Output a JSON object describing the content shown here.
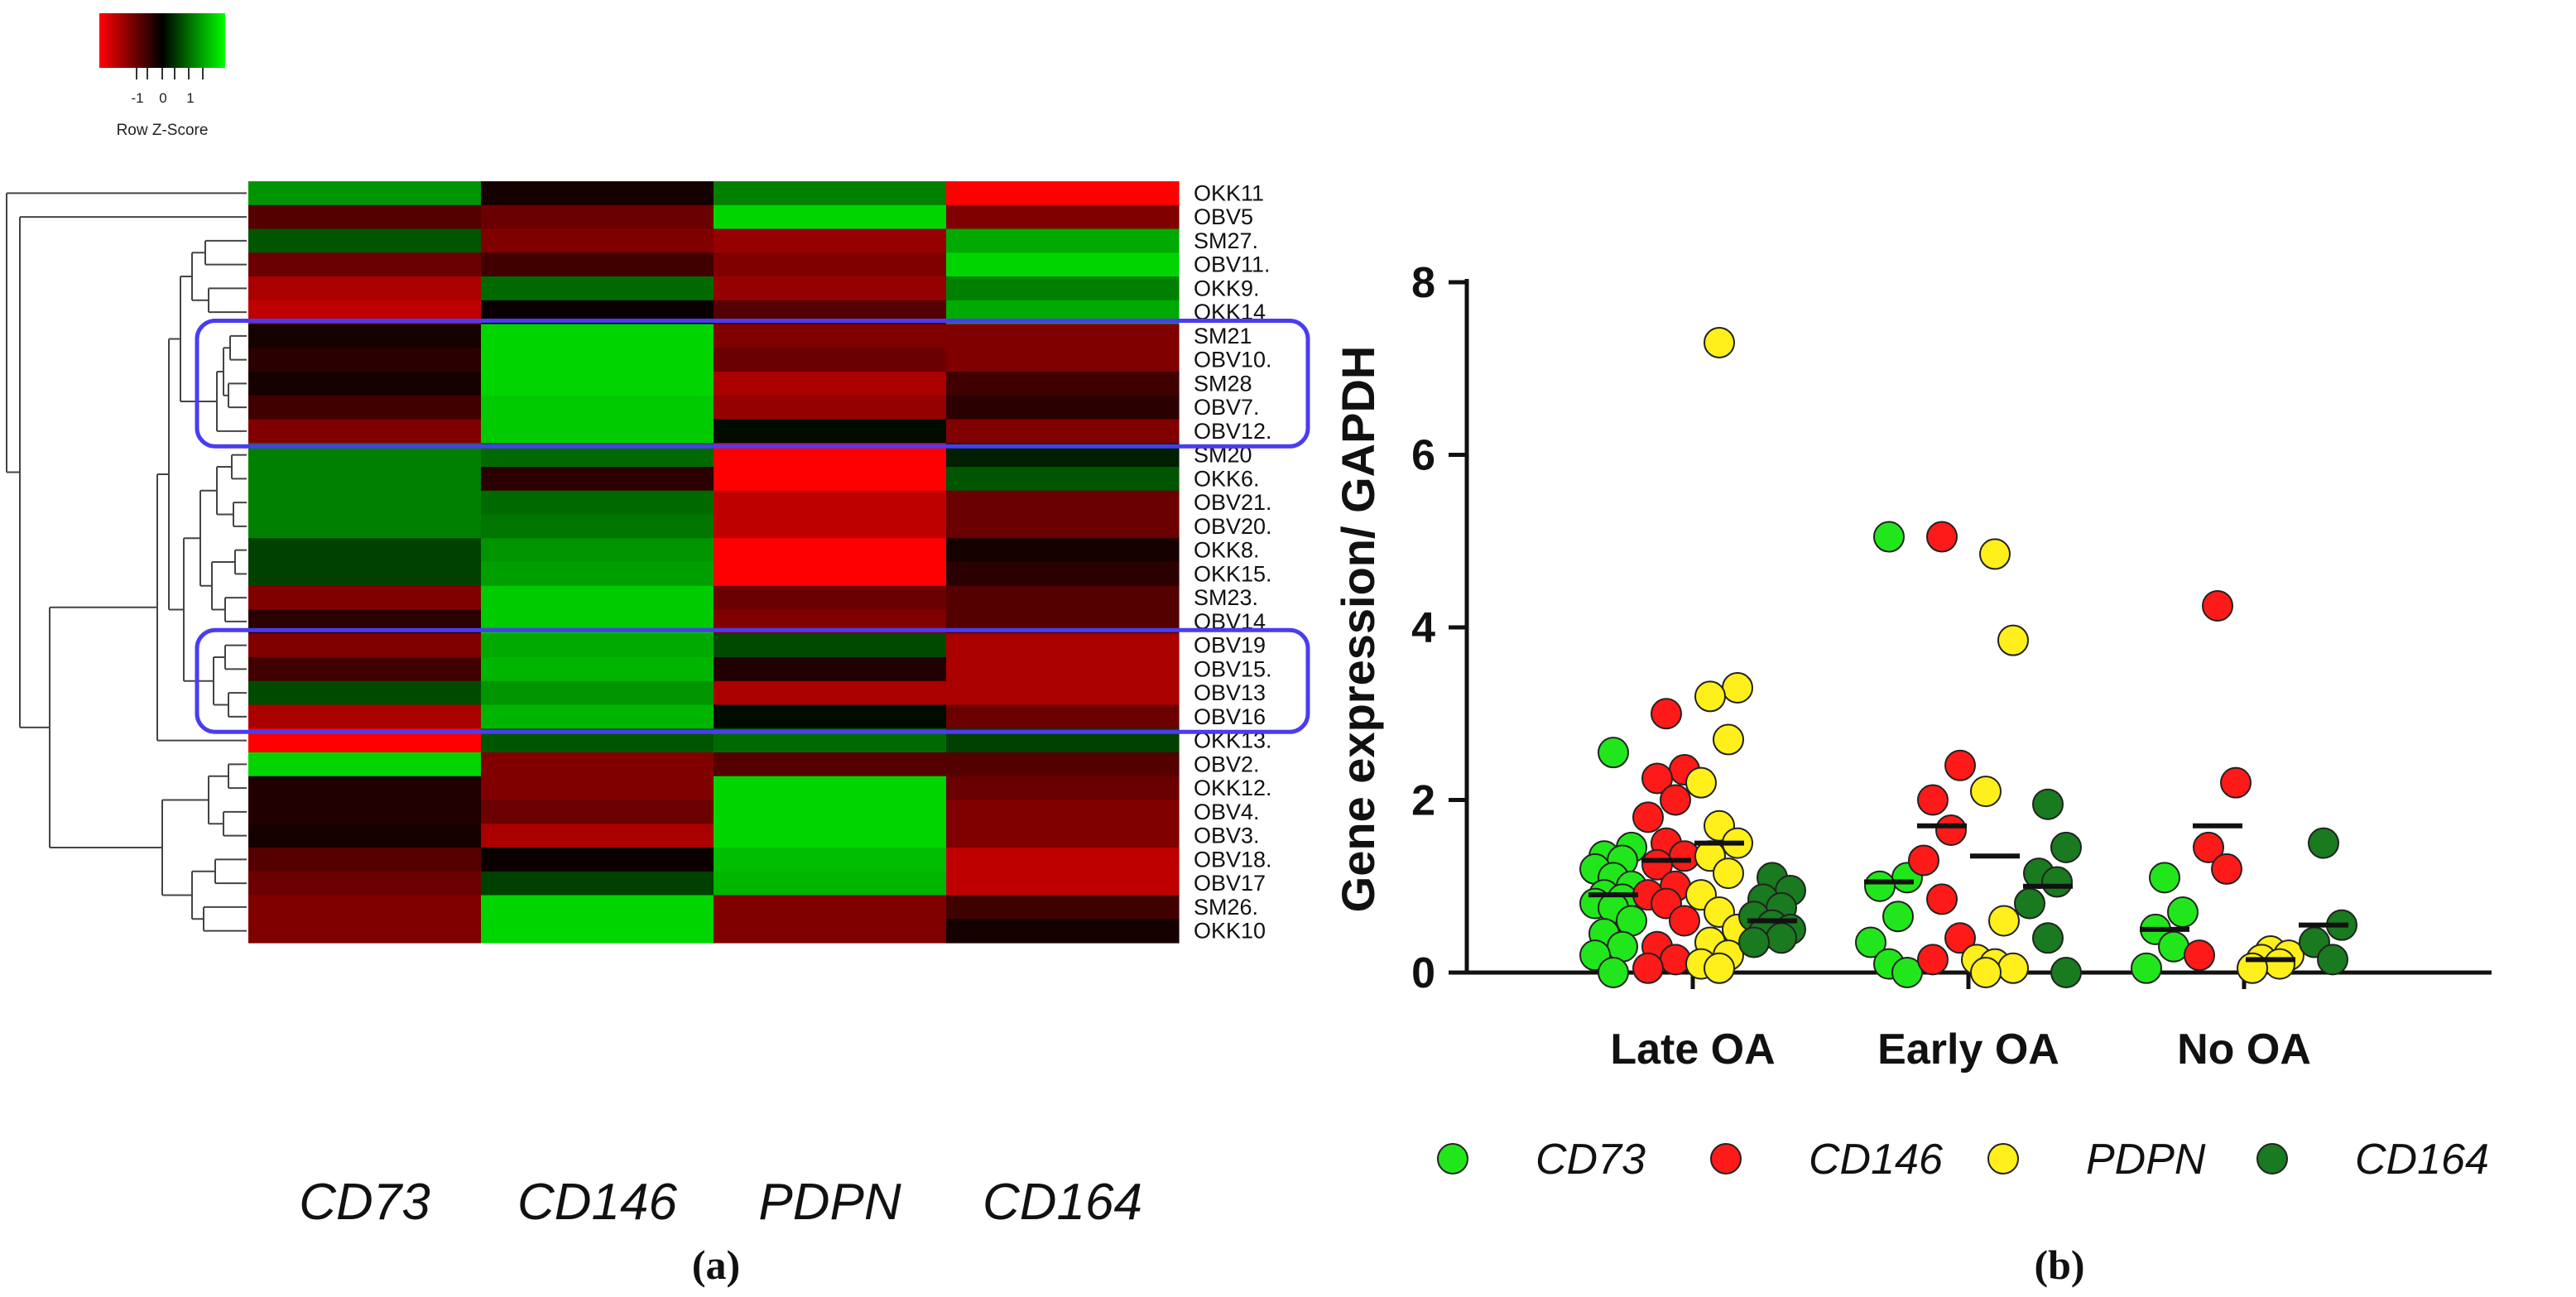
{
  "colors": {
    "low": "#ff0000",
    "mid": "#000000",
    "high": "#00ff00",
    "box_outline": "#4b3cf0",
    "CD73": "#22e61c",
    "CD146": "#ff1a1a",
    "PDPN": "#ffef1a",
    "CD164": "#197a1f"
  },
  "legend": {
    "ticks": [
      "-1",
      "0",
      "1"
    ],
    "label": "Row Z-Score"
  },
  "panel_labels": {
    "a": "(a)",
    "b": "(b)"
  },
  "chart_data": [
    {
      "type": "heatmap",
      "title": "",
      "columns": [
        "CD73",
        "CD146",
        "PDPN",
        "CD164"
      ],
      "rows": [
        "OKK11",
        "OBV5",
        "SM27.",
        "OBV11.",
        "OKK9.",
        "OKK14",
        "SM21",
        "OBV10.",
        "SM28",
        "OBV7.",
        "OBV12.",
        "SM20",
        "OKK6.",
        "OBV21.",
        "OBV20.",
        "OKK8.",
        "OKK15.",
        "SM23.",
        "OBV14",
        "OBV19",
        "OBV15.",
        "OBV13",
        "OBV16",
        "OKK13.",
        "OBV2.",
        "OKK12.",
        "OBV4.",
        "OBV3.",
        "OBV18.",
        "OBV17",
        "SM26.",
        "OKK10"
      ],
      "values": [
        [
          0.7,
          -0.1,
          0.6,
          -1.2
        ],
        [
          -0.4,
          -0.5,
          1.0,
          -0.6
        ],
        [
          0.4,
          -0.6,
          -0.7,
          0.8
        ],
        [
          -0.5,
          -0.3,
          -0.6,
          1.0
        ],
        [
          -0.8,
          0.5,
          -0.7,
          0.6
        ],
        [
          -0.9,
          -0.05,
          -0.4,
          0.8
        ],
        [
          -0.1,
          1.0,
          -0.6,
          -0.6
        ],
        [
          -0.2,
          1.0,
          -0.5,
          -0.6
        ],
        [
          -0.1,
          1.0,
          -0.8,
          -0.3
        ],
        [
          -0.3,
          0.95,
          -0.7,
          -0.2
        ],
        [
          -0.6,
          0.95,
          0.05,
          -0.6
        ],
        [
          0.6,
          0.5,
          -1.2,
          0.15
        ],
        [
          0.6,
          -0.2,
          -1.2,
          0.4
        ],
        [
          0.6,
          0.5,
          -0.9,
          -0.5
        ],
        [
          0.6,
          0.55,
          -0.9,
          -0.5
        ],
        [
          0.3,
          0.7,
          -1.2,
          -0.1
        ],
        [
          0.3,
          0.75,
          -1.2,
          -0.2
        ],
        [
          -0.6,
          0.95,
          -0.5,
          -0.4
        ],
        [
          -0.2,
          0.95,
          -0.6,
          -0.4
        ],
        [
          -0.6,
          0.8,
          0.35,
          -0.8
        ],
        [
          -0.3,
          0.85,
          -0.15,
          -0.8
        ],
        [
          0.35,
          0.7,
          -0.8,
          -0.8
        ],
        [
          -0.8,
          0.85,
          0.05,
          -0.5
        ],
        [
          -1.2,
          0.4,
          0.5,
          0.3
        ],
        [
          1.0,
          -0.6,
          -0.4,
          -0.4
        ],
        [
          -0.15,
          -0.6,
          1.0,
          -0.5
        ],
        [
          -0.15,
          -0.5,
          1.0,
          -0.6
        ],
        [
          -0.1,
          -0.8,
          1.0,
          -0.6
        ],
        [
          -0.4,
          -0.05,
          0.9,
          -0.9
        ],
        [
          -0.5,
          0.3,
          0.85,
          -0.9
        ],
        [
          -0.6,
          1.0,
          -0.6,
          -0.3
        ],
        [
          -0.6,
          1.0,
          -0.6,
          -0.1
        ]
      ],
      "color_scale": [
        "#ff0000",
        "#000000",
        "#00ff00"
      ],
      "value_range": [
        -1.2,
        1.2
      ],
      "highlight_boxes": [
        {
          "from_row": "SM21",
          "to_row": "OBV12."
        },
        {
          "from_row": "OBV19",
          "to_row": "OBV16"
        }
      ]
    },
    {
      "type": "scatter",
      "title": "",
      "ylabel": "Gene expression/ GAPDH",
      "xlabel": "",
      "ylim": [
        0,
        8
      ],
      "yticks": [
        0,
        2,
        4,
        6,
        8
      ],
      "categories": [
        "Late OA",
        "Early OA",
        "No OA"
      ],
      "legend_position": "bottom",
      "series": [
        {
          "name": "CD73",
          "points": [
            [
              0,
              2.55
            ],
            [
              0,
              1.45
            ],
            [
              0,
              1.35
            ],
            [
              0,
              1.3
            ],
            [
              0,
              1.2
            ],
            [
              0,
              1.1
            ],
            [
              0,
              1.0
            ],
            [
              0,
              0.9
            ],
            [
              0,
              0.85
            ],
            [
              0,
              0.8
            ],
            [
              0,
              0.75
            ],
            [
              0,
              0.6
            ],
            [
              0,
              0.45
            ],
            [
              0,
              0.3
            ],
            [
              0,
              0.2
            ],
            [
              0,
              0.0
            ],
            [
              1,
              5.05
            ],
            [
              1,
              1.1
            ],
            [
              1,
              1.0
            ],
            [
              1,
              0.65
            ],
            [
              1,
              0.35
            ],
            [
              1,
              0.1
            ],
            [
              1,
              0.0
            ],
            [
              2,
              1.1
            ],
            [
              2,
              0.7
            ],
            [
              2,
              0.5
            ],
            [
              2,
              0.3
            ],
            [
              2,
              0.05
            ]
          ],
          "means": [
            0.9,
            1.05,
            0.5
          ]
        },
        {
          "name": "CD146",
          "points": [
            [
              0,
              3.0
            ],
            [
              0,
              2.35
            ],
            [
              0,
              2.25
            ],
            [
              0,
              2.0
            ],
            [
              0,
              1.8
            ],
            [
              0,
              1.5
            ],
            [
              0,
              1.35
            ],
            [
              0,
              1.25
            ],
            [
              0,
              1.0
            ],
            [
              0,
              0.9
            ],
            [
              0,
              0.8
            ],
            [
              0,
              0.6
            ],
            [
              0,
              0.3
            ],
            [
              0,
              0.15
            ],
            [
              0,
              0.05
            ],
            [
              1,
              5.05
            ],
            [
              1,
              2.4
            ],
            [
              1,
              2.0
            ],
            [
              1,
              1.65
            ],
            [
              1,
              1.3
            ],
            [
              1,
              0.85
            ],
            [
              1,
              0.4
            ],
            [
              1,
              0.15
            ],
            [
              2,
              4.25
            ],
            [
              2,
              2.2
            ],
            [
              2,
              1.45
            ],
            [
              2,
              1.2
            ],
            [
              2,
              0.2
            ]
          ],
          "means": [
            1.3,
            1.7,
            1.7
          ]
        },
        {
          "name": "PDPN",
          "points": [
            [
              0,
              7.3
            ],
            [
              0,
              3.3
            ],
            [
              0,
              3.2
            ],
            [
              0,
              2.7
            ],
            [
              0,
              2.2
            ],
            [
              0,
              1.7
            ],
            [
              0,
              1.5
            ],
            [
              0,
              1.35
            ],
            [
              0,
              1.15
            ],
            [
              0,
              0.9
            ],
            [
              0,
              0.7
            ],
            [
              0,
              0.5
            ],
            [
              0,
              0.35
            ],
            [
              0,
              0.2
            ],
            [
              0,
              0.1
            ],
            [
              0,
              0.05
            ],
            [
              1,
              4.85
            ],
            [
              1,
              3.85
            ],
            [
              1,
              2.1
            ],
            [
              1,
              0.6
            ],
            [
              1,
              0.15
            ],
            [
              1,
              0.1
            ],
            [
              1,
              0.05
            ],
            [
              1,
              0.0
            ],
            [
              2,
              0.25
            ],
            [
              2,
              0.2
            ],
            [
              2,
              0.15
            ],
            [
              2,
              0.1
            ],
            [
              2,
              0.05
            ]
          ],
          "means": [
            1.5,
            1.35,
            0.15
          ]
        },
        {
          "name": "CD164",
          "points": [
            [
              0,
              1.1
            ],
            [
              0,
              0.95
            ],
            [
              0,
              0.85
            ],
            [
              0,
              0.75
            ],
            [
              0,
              0.65
            ],
            [
              0,
              0.55
            ],
            [
              0,
              0.5
            ],
            [
              0,
              0.45
            ],
            [
              0,
              0.4
            ],
            [
              0,
              0.35
            ],
            [
              1,
              1.95
            ],
            [
              1,
              1.45
            ],
            [
              1,
              1.15
            ],
            [
              1,
              1.05
            ],
            [
              1,
              0.8
            ],
            [
              1,
              0.4
            ],
            [
              1,
              0.0
            ],
            [
              2,
              1.5
            ],
            [
              2,
              0.55
            ],
            [
              2,
              0.35
            ],
            [
              2,
              0.15
            ]
          ],
          "means": [
            0.6,
            1.0,
            0.55
          ]
        }
      ]
    }
  ]
}
